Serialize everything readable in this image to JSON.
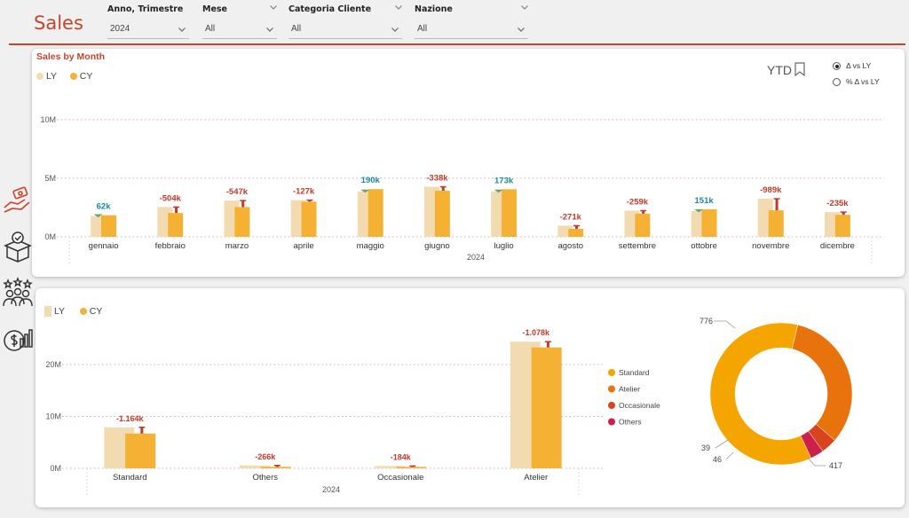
{
  "header": {
    "title": "Sales",
    "filters": [
      {
        "label": "Anno, Trimestre",
        "value": "2024"
      },
      {
        "label": "Mese",
        "value": "All"
      },
      {
        "label": "Categoria Cliente",
        "value": "All"
      },
      {
        "label": "Nazione",
        "value": "All"
      }
    ]
  },
  "nav": {
    "icons": [
      "money-hand-icon",
      "package-check-icon",
      "customers-stars-icon",
      "revenue-growth-icon"
    ]
  },
  "monthly": {
    "title": "Sales by Month",
    "legend": {
      "ly": "LY",
      "cy": "CY"
    },
    "ytd_label": "YTD",
    "radio": [
      {
        "label": "Δ vs LY",
        "selected": true
      },
      {
        "label": "% Δ vs LY",
        "selected": false
      }
    ],
    "colors": {
      "ly": "#f2dbb0",
      "cy": "#f4b133",
      "pos": "#1a8a99",
      "neg": "#c0392b",
      "pos_marker": "#6aa36a"
    }
  },
  "category": {
    "legend": {
      "ly": "LY",
      "cy": "CY"
    },
    "donut_legend": [
      "Standard",
      "Atelier",
      "Occasionale",
      "Others"
    ],
    "donut_colors": [
      "#f5a500",
      "#e8720c",
      "#d9431e",
      "#cc1f4a"
    ]
  },
  "chart_data": [
    {
      "type": "bar",
      "title": "Sales by Month",
      "xlabel": "2024",
      "categories": [
        "gennaio",
        "febbraio",
        "marzo",
        "aprile",
        "maggio",
        "giugno",
        "luglio",
        "agosto",
        "settembre",
        "ottobre",
        "novembre",
        "dicembre"
      ],
      "series": [
        {
          "name": "LY",
          "values": [
            1.78,
            2.54,
            3.09,
            3.13,
            3.88,
            4.27,
            3.88,
            0.95,
            2.23,
            2.2,
            3.25,
            2.11
          ]
        },
        {
          "name": "CY",
          "values": [
            1.84,
            2.03,
            2.54,
            3.0,
            4.07,
            3.93,
            4.06,
            0.68,
            1.97,
            2.35,
            2.26,
            1.88
          ]
        }
      ],
      "deltas": [
        "62k",
        "-504k",
        "-547k",
        "-127k",
        "190k",
        "-338k",
        "173k",
        "-271k",
        "-259k",
        "151k",
        "-989k",
        "-235k"
      ],
      "yticks": [
        "0M",
        "5M",
        "10M"
      ],
      "ylim": [
        0,
        11.5
      ]
    },
    {
      "type": "bar",
      "xlabel": "2024",
      "categories": [
        "Standard",
        "Others",
        "Occasionale",
        "Atelier"
      ],
      "series": [
        {
          "name": "LY",
          "values": [
            7.9,
            0.55,
            0.45,
            24.4
          ]
        },
        {
          "name": "CY",
          "values": [
            6.7,
            0.28,
            0.27,
            23.3
          ]
        }
      ],
      "deltas": [
        "-1.164k",
        "-266k",
        "-184k",
        "-1.078k"
      ],
      "yticks": [
        "0M",
        "10M",
        "20M"
      ],
      "ylim": [
        0,
        27
      ]
    },
    {
      "type": "pie",
      "categories": [
        "Standard",
        "Atelier",
        "Occasionale",
        "Others"
      ],
      "values": [
        776,
        417,
        46,
        39
      ],
      "labels": [
        "776",
        "417",
        "46",
        "39"
      ]
    }
  ]
}
